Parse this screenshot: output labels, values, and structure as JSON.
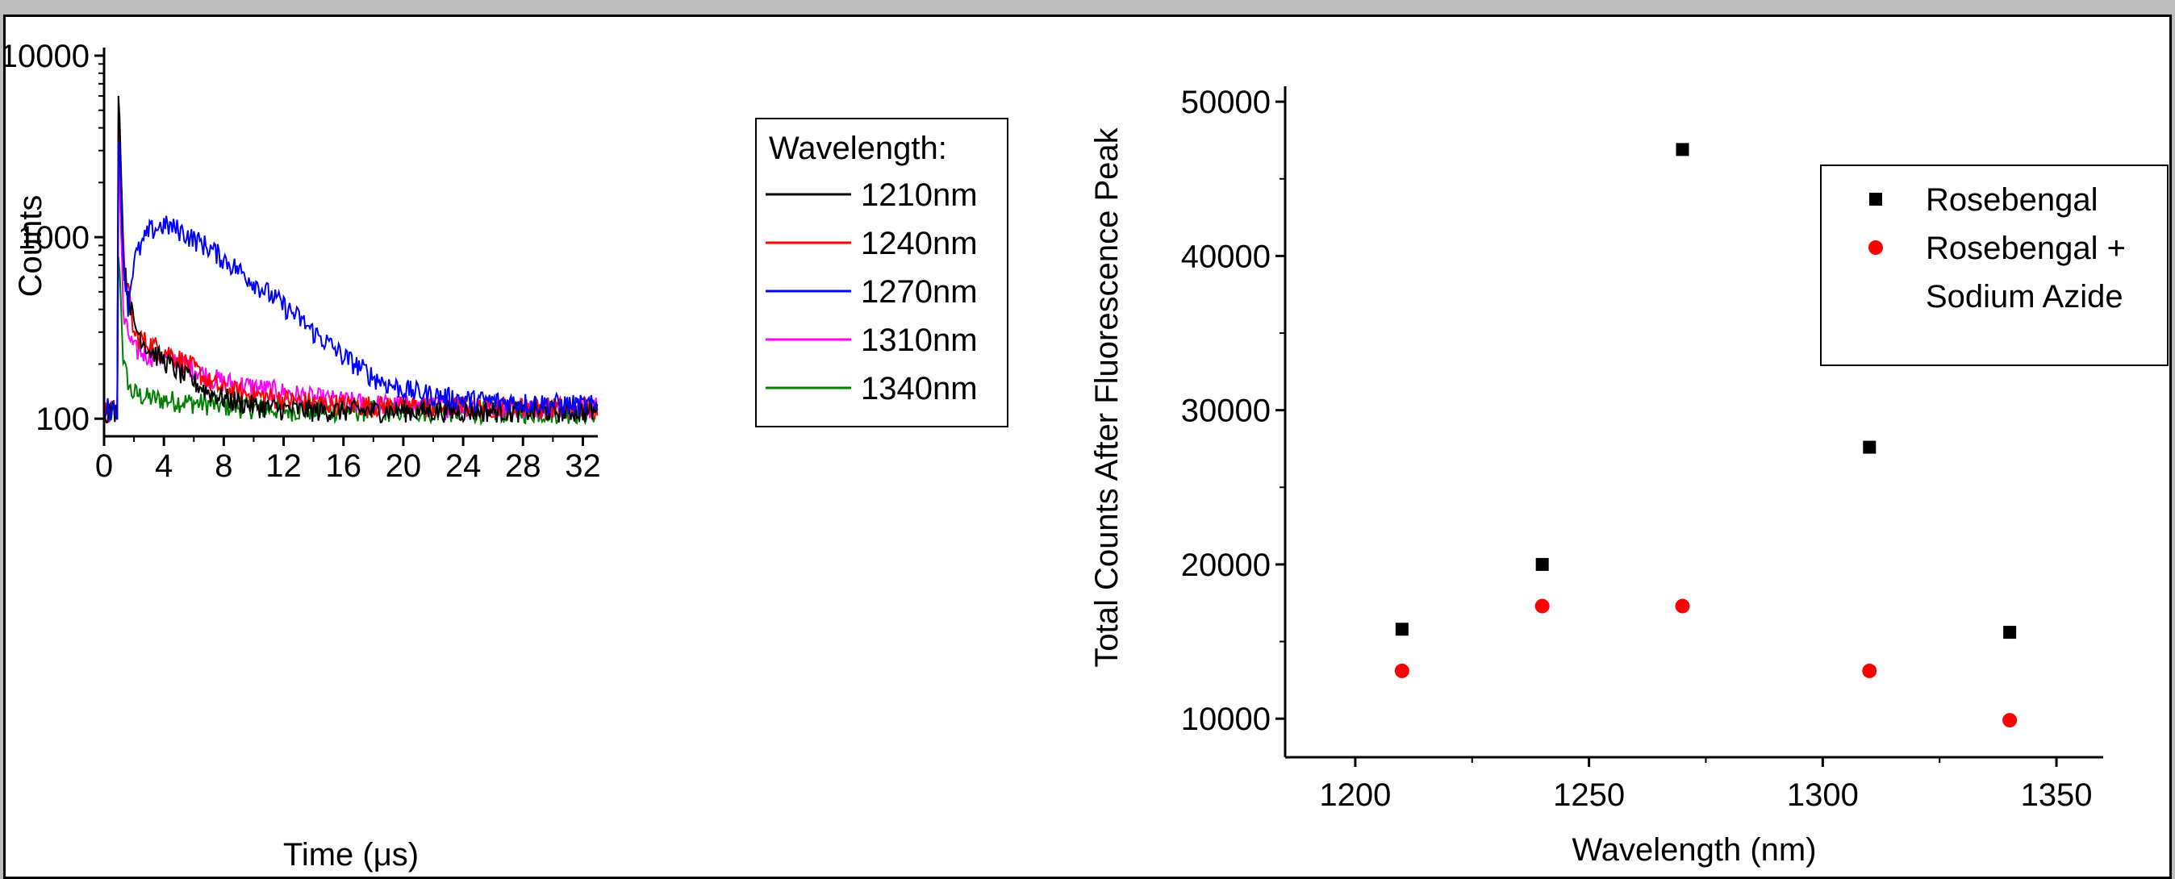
{
  "chart_data": [
    {
      "type": "line",
      "xlabel": "Time (μs)",
      "ylabel": "Counts",
      "xlim": [
        0,
        33
      ],
      "ylim": [
        80,
        10000
      ],
      "yscale": "log",
      "xticks": [
        0,
        4,
        8,
        12,
        16,
        20,
        24,
        28,
        32
      ],
      "xtick_labels": [
        "0",
        "4",
        "8",
        "12",
        "16",
        "20",
        "24",
        "28",
        "32"
      ],
      "yticks": [
        100,
        1000,
        10000
      ],
      "ytick_labels": [
        "100",
        "1000",
        "10000"
      ],
      "legend_title": "Wavelength:",
      "legend_position": "top-right",
      "grid": false,
      "series": [
        {
          "name": "1210nm",
          "color": "#000000",
          "baseline": 110,
          "pre": 110,
          "peak": 6000,
          "decay": [
            [
              1.0,
              6000
            ],
            [
              1.3,
              700
            ],
            [
              2,
              330
            ],
            [
              3,
              240
            ],
            [
              4,
              210
            ],
            [
              5,
              180
            ],
            [
              6,
              160
            ],
            [
              7,
              140
            ],
            [
              8,
              130
            ],
            [
              10,
              118
            ],
            [
              12,
              113
            ],
            [
              14,
              111
            ],
            [
              33,
              110
            ]
          ]
        },
        {
          "name": "1240nm",
          "color": "#ff0000",
          "baseline": 112,
          "pre": 115,
          "peak": 4500,
          "decay": [
            [
              1.0,
              4500
            ],
            [
              1.3,
              800
            ],
            [
              2,
              290
            ],
            [
              3,
              260
            ],
            [
              4,
              240
            ],
            [
              5,
              215
            ],
            [
              6,
              190
            ],
            [
              7,
              160
            ],
            [
              8,
              145
            ],
            [
              10,
              135
            ],
            [
              12,
              128
            ],
            [
              14,
              122
            ],
            [
              18,
              118
            ],
            [
              33,
              115
            ]
          ]
        },
        {
          "name": "1270nm",
          "color": "#0000ff",
          "baseline": 115,
          "pre": 115,
          "peak": 3400,
          "decay": [
            [
              1.0,
              3400
            ],
            [
              1.3,
              750
            ],
            [
              1.6,
              420
            ],
            [
              2,
              750
            ],
            [
              3,
              1080
            ],
            [
              4,
              1170
            ],
            [
              5,
              1100
            ],
            [
              6,
              980
            ],
            [
              7,
              880
            ],
            [
              8,
              760
            ],
            [
              9,
              660
            ],
            [
              10,
              570
            ],
            [
              11,
              490
            ],
            [
              12,
              420
            ],
            [
              13,
              360
            ],
            [
              14,
              300
            ],
            [
              15,
              260
            ],
            [
              16,
              220
            ],
            [
              17,
              195
            ],
            [
              18,
              170
            ],
            [
              19,
              155
            ],
            [
              20,
              145
            ],
            [
              22,
              135
            ],
            [
              24,
              128
            ],
            [
              26,
              125
            ],
            [
              33,
              118
            ]
          ]
        },
        {
          "name": "1310nm",
          "color": "#ff00ff",
          "baseline": 110,
          "pre": 110,
          "peak": 2500,
          "decay": [
            [
              1.0,
              2500
            ],
            [
              1.3,
              350
            ],
            [
              2,
              240
            ],
            [
              3,
              225
            ],
            [
              4,
              218
            ],
            [
              5,
              210
            ],
            [
              6,
              190
            ],
            [
              7,
              170
            ],
            [
              8,
              160
            ],
            [
              10,
              150
            ],
            [
              12,
              140
            ],
            [
              14,
              130
            ],
            [
              18,
              120
            ],
            [
              33,
              115
            ]
          ]
        },
        {
          "name": "1340nm",
          "color": "#008000",
          "baseline": 108,
          "pre": 108,
          "peak": 780,
          "decay": [
            [
              1.0,
              780
            ],
            [
              1.3,
              200
            ],
            [
              1.8,
              140
            ],
            [
              3,
              130
            ],
            [
              5,
              125
            ],
            [
              8,
              118
            ],
            [
              12,
              112
            ],
            [
              33,
              108
            ]
          ]
        }
      ]
    },
    {
      "type": "scatter",
      "xlabel": "Wavelength (nm)",
      "ylabel": "Total Counts After Fluorescence Peak",
      "xlim": [
        1185,
        1360
      ],
      "ylim": [
        7500,
        51000
      ],
      "xticks": [
        1200,
        1250,
        1300,
        1350
      ],
      "xtick_labels": [
        "1200",
        "1250",
        "1300",
        "1350"
      ],
      "yticks": [
        10000,
        20000,
        30000,
        40000,
        50000
      ],
      "ytick_labels": [
        "10000",
        "20000",
        "30000",
        "40000",
        "50000"
      ],
      "legend_position": "top-right",
      "grid": false,
      "series": [
        {
          "name": "Rosebengal",
          "marker": "square",
          "color": "#000000",
          "x": [
            1210,
            1240,
            1270,
            1310,
            1340
          ],
          "y": [
            15800,
            20000,
            46900,
            27600,
            15600
          ]
        },
        {
          "name_lines": [
            "Rosebengal +",
            "Sodium Azide"
          ],
          "marker": "circle",
          "color": "#ff0000",
          "x": [
            1210,
            1240,
            1270,
            1310,
            1340
          ],
          "y": [
            13100,
            17300,
            17300,
            13100,
            9900
          ]
        }
      ]
    }
  ]
}
